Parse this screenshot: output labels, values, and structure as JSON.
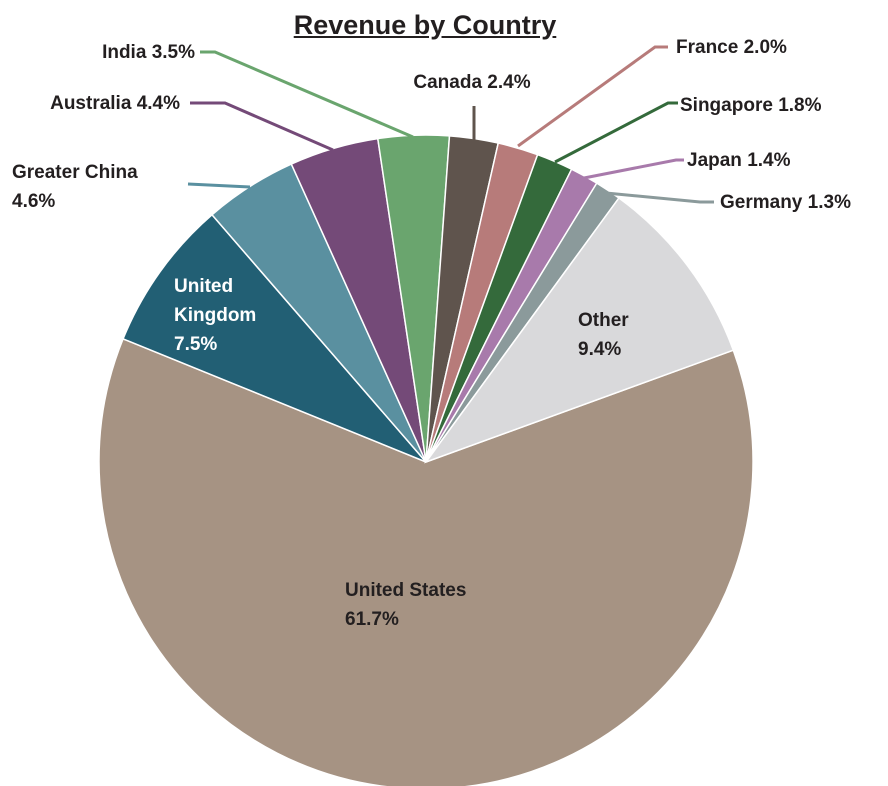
{
  "chart_data": {
    "type": "pie",
    "title": "Revenue by Country",
    "categories": [
      "United States",
      "United Kingdom",
      "Greater China",
      "Australia",
      "India",
      "Canada",
      "France",
      "Singapore",
      "Japan",
      "Germany",
      "Other"
    ],
    "values": [
      61.7,
      7.5,
      4.6,
      4.4,
      3.5,
      2.4,
      2.0,
      1.8,
      1.4,
      1.3,
      9.4
    ],
    "value_labels": [
      "61.7%",
      "7.5%",
      "4.6%",
      "4.4%",
      "3.5%",
      "2.4%",
      "2.0%",
      "1.8%",
      "1.4%",
      "1.3%",
      "9.4%"
    ],
    "colors": [
      "#a69383",
      "#225f74",
      "#5a90a0",
      "#744a78",
      "#6aa56e",
      "#5f544d",
      "#b77b7a",
      "#346a3b",
      "#a87aab",
      "#8b9a9b",
      "#d9d9db"
    ]
  }
}
